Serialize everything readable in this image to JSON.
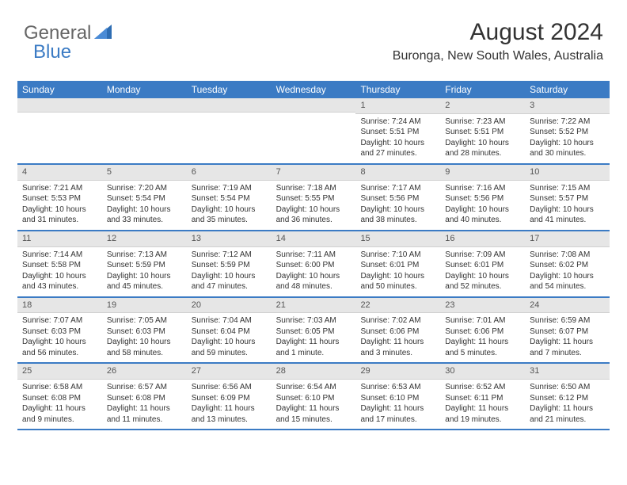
{
  "logo": {
    "part1": "General",
    "part2": "Blue"
  },
  "header": {
    "title": "August 2024",
    "location": "Buronga, New South Wales, Australia"
  },
  "colors": {
    "accent": "#3b7bc4",
    "cell_num_bg": "#e6e6e6",
    "text": "#333333"
  },
  "dayNames": [
    "Sunday",
    "Monday",
    "Tuesday",
    "Wednesday",
    "Thursday",
    "Friday",
    "Saturday"
  ],
  "weeks": [
    [
      {
        "num": "",
        "lines": []
      },
      {
        "num": "",
        "lines": []
      },
      {
        "num": "",
        "lines": []
      },
      {
        "num": "",
        "lines": []
      },
      {
        "num": "1",
        "lines": [
          "Sunrise: 7:24 AM",
          "Sunset: 5:51 PM",
          "Daylight: 10 hours",
          "and 27 minutes."
        ]
      },
      {
        "num": "2",
        "lines": [
          "Sunrise: 7:23 AM",
          "Sunset: 5:51 PM",
          "Daylight: 10 hours",
          "and 28 minutes."
        ]
      },
      {
        "num": "3",
        "lines": [
          "Sunrise: 7:22 AM",
          "Sunset: 5:52 PM",
          "Daylight: 10 hours",
          "and 30 minutes."
        ]
      }
    ],
    [
      {
        "num": "4",
        "lines": [
          "Sunrise: 7:21 AM",
          "Sunset: 5:53 PM",
          "Daylight: 10 hours",
          "and 31 minutes."
        ]
      },
      {
        "num": "5",
        "lines": [
          "Sunrise: 7:20 AM",
          "Sunset: 5:54 PM",
          "Daylight: 10 hours",
          "and 33 minutes."
        ]
      },
      {
        "num": "6",
        "lines": [
          "Sunrise: 7:19 AM",
          "Sunset: 5:54 PM",
          "Daylight: 10 hours",
          "and 35 minutes."
        ]
      },
      {
        "num": "7",
        "lines": [
          "Sunrise: 7:18 AM",
          "Sunset: 5:55 PM",
          "Daylight: 10 hours",
          "and 36 minutes."
        ]
      },
      {
        "num": "8",
        "lines": [
          "Sunrise: 7:17 AM",
          "Sunset: 5:56 PM",
          "Daylight: 10 hours",
          "and 38 minutes."
        ]
      },
      {
        "num": "9",
        "lines": [
          "Sunrise: 7:16 AM",
          "Sunset: 5:56 PM",
          "Daylight: 10 hours",
          "and 40 minutes."
        ]
      },
      {
        "num": "10",
        "lines": [
          "Sunrise: 7:15 AM",
          "Sunset: 5:57 PM",
          "Daylight: 10 hours",
          "and 41 minutes."
        ]
      }
    ],
    [
      {
        "num": "11",
        "lines": [
          "Sunrise: 7:14 AM",
          "Sunset: 5:58 PM",
          "Daylight: 10 hours",
          "and 43 minutes."
        ]
      },
      {
        "num": "12",
        "lines": [
          "Sunrise: 7:13 AM",
          "Sunset: 5:59 PM",
          "Daylight: 10 hours",
          "and 45 minutes."
        ]
      },
      {
        "num": "13",
        "lines": [
          "Sunrise: 7:12 AM",
          "Sunset: 5:59 PM",
          "Daylight: 10 hours",
          "and 47 minutes."
        ]
      },
      {
        "num": "14",
        "lines": [
          "Sunrise: 7:11 AM",
          "Sunset: 6:00 PM",
          "Daylight: 10 hours",
          "and 48 minutes."
        ]
      },
      {
        "num": "15",
        "lines": [
          "Sunrise: 7:10 AM",
          "Sunset: 6:01 PM",
          "Daylight: 10 hours",
          "and 50 minutes."
        ]
      },
      {
        "num": "16",
        "lines": [
          "Sunrise: 7:09 AM",
          "Sunset: 6:01 PM",
          "Daylight: 10 hours",
          "and 52 minutes."
        ]
      },
      {
        "num": "17",
        "lines": [
          "Sunrise: 7:08 AM",
          "Sunset: 6:02 PM",
          "Daylight: 10 hours",
          "and 54 minutes."
        ]
      }
    ],
    [
      {
        "num": "18",
        "lines": [
          "Sunrise: 7:07 AM",
          "Sunset: 6:03 PM",
          "Daylight: 10 hours",
          "and 56 minutes."
        ]
      },
      {
        "num": "19",
        "lines": [
          "Sunrise: 7:05 AM",
          "Sunset: 6:03 PM",
          "Daylight: 10 hours",
          "and 58 minutes."
        ]
      },
      {
        "num": "20",
        "lines": [
          "Sunrise: 7:04 AM",
          "Sunset: 6:04 PM",
          "Daylight: 10 hours",
          "and 59 minutes."
        ]
      },
      {
        "num": "21",
        "lines": [
          "Sunrise: 7:03 AM",
          "Sunset: 6:05 PM",
          "Daylight: 11 hours",
          "and 1 minute."
        ]
      },
      {
        "num": "22",
        "lines": [
          "Sunrise: 7:02 AM",
          "Sunset: 6:06 PM",
          "Daylight: 11 hours",
          "and 3 minutes."
        ]
      },
      {
        "num": "23",
        "lines": [
          "Sunrise: 7:01 AM",
          "Sunset: 6:06 PM",
          "Daylight: 11 hours",
          "and 5 minutes."
        ]
      },
      {
        "num": "24",
        "lines": [
          "Sunrise: 6:59 AM",
          "Sunset: 6:07 PM",
          "Daylight: 11 hours",
          "and 7 minutes."
        ]
      }
    ],
    [
      {
        "num": "25",
        "lines": [
          "Sunrise: 6:58 AM",
          "Sunset: 6:08 PM",
          "Daylight: 11 hours",
          "and 9 minutes."
        ]
      },
      {
        "num": "26",
        "lines": [
          "Sunrise: 6:57 AM",
          "Sunset: 6:08 PM",
          "Daylight: 11 hours",
          "and 11 minutes."
        ]
      },
      {
        "num": "27",
        "lines": [
          "Sunrise: 6:56 AM",
          "Sunset: 6:09 PM",
          "Daylight: 11 hours",
          "and 13 minutes."
        ]
      },
      {
        "num": "28",
        "lines": [
          "Sunrise: 6:54 AM",
          "Sunset: 6:10 PM",
          "Daylight: 11 hours",
          "and 15 minutes."
        ]
      },
      {
        "num": "29",
        "lines": [
          "Sunrise: 6:53 AM",
          "Sunset: 6:10 PM",
          "Daylight: 11 hours",
          "and 17 minutes."
        ]
      },
      {
        "num": "30",
        "lines": [
          "Sunrise: 6:52 AM",
          "Sunset: 6:11 PM",
          "Daylight: 11 hours",
          "and 19 minutes."
        ]
      },
      {
        "num": "31",
        "lines": [
          "Sunrise: 6:50 AM",
          "Sunset: 6:12 PM",
          "Daylight: 11 hours",
          "and 21 minutes."
        ]
      }
    ]
  ]
}
